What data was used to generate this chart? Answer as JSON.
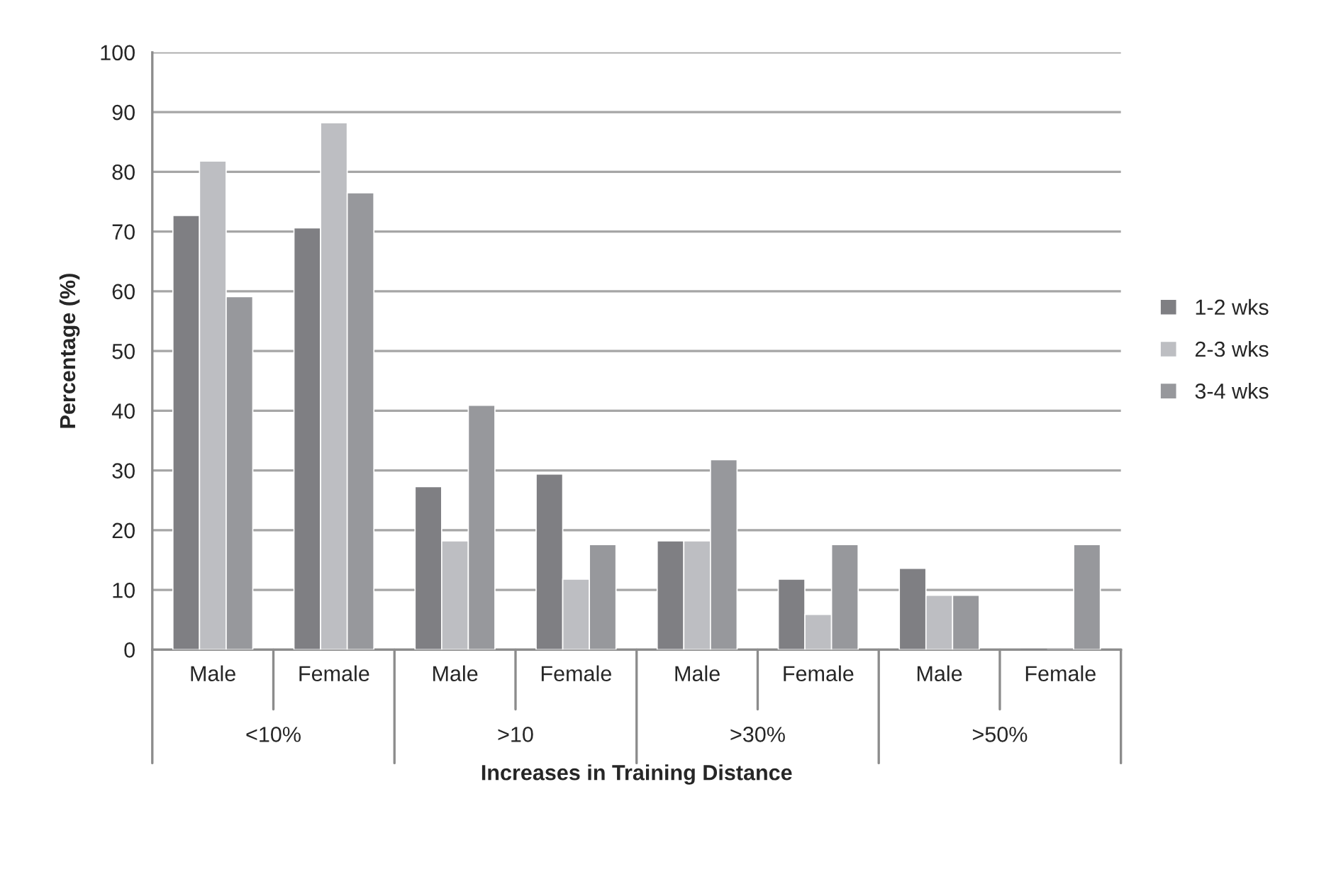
{
  "chart_data": {
    "type": "bar",
    "xlabel": "Increases in Training Distance",
    "ylabel": "Percentage (%)",
    "categories": [
      "Male",
      "Female",
      "Male",
      "Female",
      "Male",
      "Female",
      "Male",
      "Female"
    ],
    "series": [
      {
        "name": "1-2 wks",
        "color": "#7f7f83",
        "values": [
          72.7,
          70.6,
          27.3,
          29.4,
          18.2,
          11.8,
          13.6,
          0
        ]
      },
      {
        "name": "2-3 wks",
        "color": "#bdbec2",
        "values": [
          81.8,
          88.2,
          18.2,
          11.8,
          18.2,
          5.9,
          9.1,
          0
        ]
      },
      {
        "name": "3-4 wks",
        "color": "#97989c",
        "values": [
          59.1,
          76.5,
          40.9,
          17.6,
          31.8,
          17.6,
          9.1,
          17.6
        ]
      }
    ],
    "annotations": [
      "<10%",
      ">10",
      ">30%",
      ">50%"
    ],
    "ylim": [
      0,
      100
    ],
    "yticks": [
      0,
      10,
      20,
      30,
      40,
      50,
      60,
      70,
      80,
      90,
      100
    ],
    "grid": "y",
    "legend": "right"
  }
}
